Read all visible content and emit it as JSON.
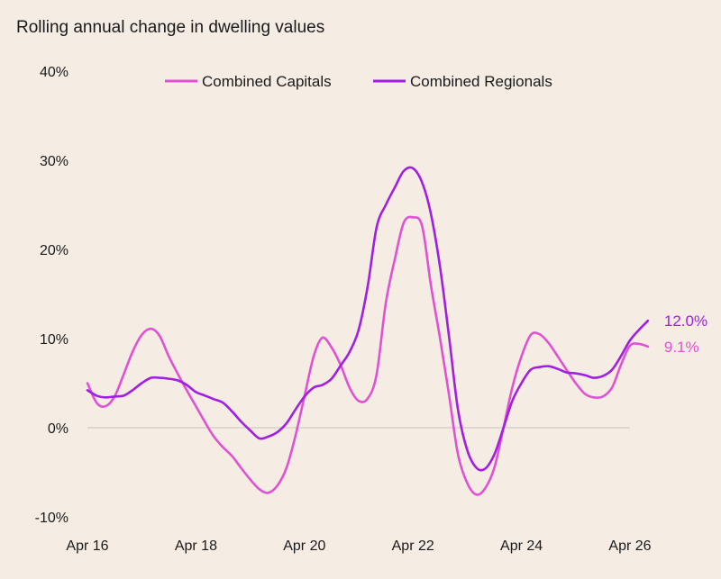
{
  "chart_data": {
    "type": "line",
    "title": "Rolling annual change in dwelling values",
    "xlabel": "",
    "ylabel": "",
    "x_tick_labels": [
      "Apr 16",
      "Apr 18",
      "Apr 20",
      "Apr 22",
      "Apr 24",
      "Apr 26"
    ],
    "x_tick_values": [
      2016.25,
      2018.25,
      2020.25,
      2022.25,
      2024.25,
      2026.25
    ],
    "xlim": [
      2016.25,
      2026.25
    ],
    "y_tick_labels": [
      "40%",
      "30%",
      "20%",
      "10%",
      "0%",
      "-10%"
    ],
    "y_tick_values": [
      40,
      30,
      20,
      10,
      0,
      -10
    ],
    "ylim": [
      -10,
      40
    ],
    "grid": false,
    "zero_line": true,
    "legend_position": "top",
    "series": [
      {
        "name": "Combined Capitals",
        "color": "#e052d3",
        "end_label": "9.1%",
        "points": [
          [
            2016.25,
            5.0
          ],
          [
            2016.42,
            2.8
          ],
          [
            2016.58,
            2.4
          ],
          [
            2016.75,
            3.5
          ],
          [
            2016.92,
            6.0
          ],
          [
            2017.08,
            8.5
          ],
          [
            2017.25,
            10.4
          ],
          [
            2017.42,
            11.1
          ],
          [
            2017.58,
            10.3
          ],
          [
            2017.75,
            8.0
          ],
          [
            2017.92,
            6.0
          ],
          [
            2018.08,
            4.2
          ],
          [
            2018.25,
            2.4
          ],
          [
            2018.42,
            0.6
          ],
          [
            2018.58,
            -1.0
          ],
          [
            2018.75,
            -2.2
          ],
          [
            2018.92,
            -3.2
          ],
          [
            2019.08,
            -4.5
          ],
          [
            2019.25,
            -5.8
          ],
          [
            2019.42,
            -6.9
          ],
          [
            2019.58,
            -7.3
          ],
          [
            2019.75,
            -6.5
          ],
          [
            2019.92,
            -4.5
          ],
          [
            2020.08,
            -1.0
          ],
          [
            2020.25,
            3.5
          ],
          [
            2020.42,
            8.0
          ],
          [
            2020.58,
            10.1
          ],
          [
            2020.75,
            9.0
          ],
          [
            2020.92,
            7.0
          ],
          [
            2021.08,
            4.5
          ],
          [
            2021.25,
            3.0
          ],
          [
            2021.42,
            3.3
          ],
          [
            2021.58,
            6.0
          ],
          [
            2021.75,
            14.0
          ],
          [
            2021.92,
            19.0
          ],
          [
            2022.08,
            23.0
          ],
          [
            2022.25,
            23.6
          ],
          [
            2022.42,
            22.6
          ],
          [
            2022.58,
            16.0
          ],
          [
            2022.75,
            10.0
          ],
          [
            2022.92,
            3.5
          ],
          [
            2023.08,
            -3.0
          ],
          [
            2023.25,
            -6.2
          ],
          [
            2023.42,
            -7.5
          ],
          [
            2023.58,
            -6.8
          ],
          [
            2023.75,
            -4.5
          ],
          [
            2023.92,
            0.0
          ],
          [
            2024.08,
            4.5
          ],
          [
            2024.25,
            8.0
          ],
          [
            2024.42,
            10.4
          ],
          [
            2024.58,
            10.5
          ],
          [
            2024.75,
            9.5
          ],
          [
            2024.92,
            8.0
          ],
          [
            2025.08,
            6.5
          ],
          [
            2025.25,
            5.0
          ],
          [
            2025.42,
            3.8
          ],
          [
            2025.58,
            3.4
          ],
          [
            2025.75,
            3.5
          ],
          [
            2025.92,
            4.5
          ],
          [
            2026.08,
            7.0
          ],
          [
            2026.25,
            9.2
          ],
          [
            2026.42,
            9.4
          ],
          [
            2026.58,
            9.1
          ]
        ]
      },
      {
        "name": "Combined Regionals",
        "color": "#a11ee3",
        "end_label": "12.0%",
        "points": [
          [
            2016.25,
            4.2
          ],
          [
            2016.42,
            3.6
          ],
          [
            2016.58,
            3.4
          ],
          [
            2016.75,
            3.5
          ],
          [
            2016.92,
            3.6
          ],
          [
            2017.08,
            4.2
          ],
          [
            2017.25,
            5.0
          ],
          [
            2017.42,
            5.6
          ],
          [
            2017.58,
            5.6
          ],
          [
            2017.75,
            5.5
          ],
          [
            2017.92,
            5.3
          ],
          [
            2018.08,
            4.8
          ],
          [
            2018.25,
            4.0
          ],
          [
            2018.42,
            3.6
          ],
          [
            2018.58,
            3.2
          ],
          [
            2018.75,
            2.8
          ],
          [
            2018.92,
            1.8
          ],
          [
            2019.08,
            0.7
          ],
          [
            2019.25,
            -0.3
          ],
          [
            2019.42,
            -1.2
          ],
          [
            2019.58,
            -1.0
          ],
          [
            2019.75,
            -0.5
          ],
          [
            2019.92,
            0.5
          ],
          [
            2020.08,
            2.0
          ],
          [
            2020.25,
            3.5
          ],
          [
            2020.42,
            4.5
          ],
          [
            2020.58,
            4.8
          ],
          [
            2020.75,
            5.5
          ],
          [
            2020.92,
            7.0
          ],
          [
            2021.08,
            8.5
          ],
          [
            2021.25,
            11.0
          ],
          [
            2021.42,
            16.0
          ],
          [
            2021.58,
            22.5
          ],
          [
            2021.75,
            25.0
          ],
          [
            2021.92,
            27.0
          ],
          [
            2022.08,
            28.8
          ],
          [
            2022.25,
            29.1
          ],
          [
            2022.42,
            27.5
          ],
          [
            2022.58,
            24.0
          ],
          [
            2022.75,
            18.0
          ],
          [
            2022.92,
            10.0
          ],
          [
            2023.08,
            2.0
          ],
          [
            2023.25,
            -2.5
          ],
          [
            2023.42,
            -4.5
          ],
          [
            2023.58,
            -4.6
          ],
          [
            2023.75,
            -3.0
          ],
          [
            2023.92,
            0.0
          ],
          [
            2024.08,
            3.0
          ],
          [
            2024.25,
            5.0
          ],
          [
            2024.42,
            6.5
          ],
          [
            2024.58,
            6.8
          ],
          [
            2024.75,
            6.9
          ],
          [
            2024.92,
            6.6
          ],
          [
            2025.08,
            6.2
          ],
          [
            2025.25,
            6.1
          ],
          [
            2025.42,
            5.9
          ],
          [
            2025.58,
            5.6
          ],
          [
            2025.75,
            5.8
          ],
          [
            2025.92,
            6.5
          ],
          [
            2026.08,
            8.0
          ],
          [
            2026.25,
            9.8
          ],
          [
            2026.42,
            11.0
          ],
          [
            2026.58,
            12.0
          ]
        ]
      }
    ]
  }
}
